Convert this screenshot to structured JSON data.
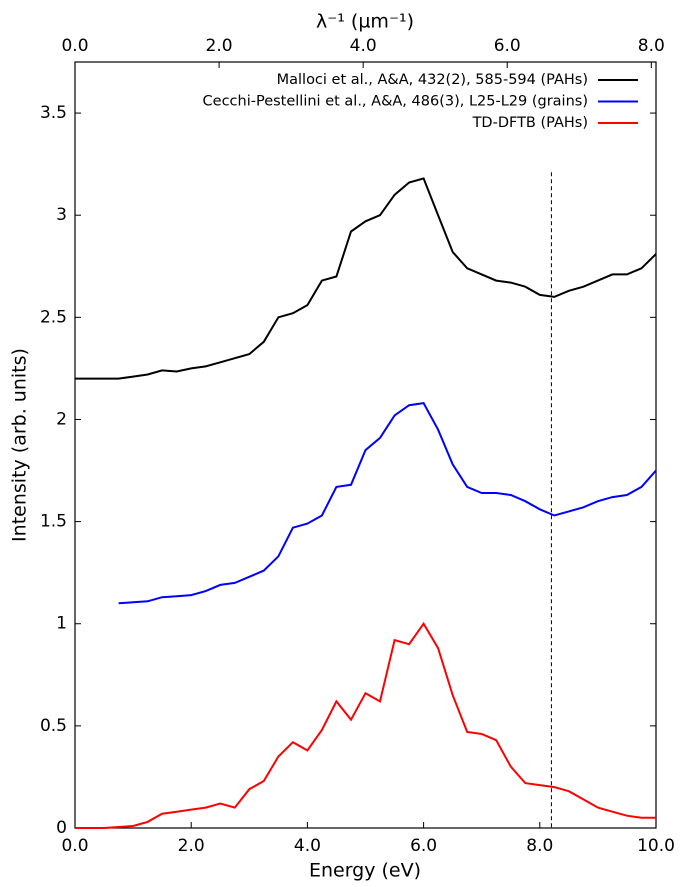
{
  "chart_data": {
    "type": "line",
    "xlabel": "Energy (eV)",
    "ylabel": "Intensity (arb. units)",
    "x2label": "λ⁻¹ (µm⁻¹)",
    "x": [
      0,
      0.25,
      0.5,
      0.75,
      1.0,
      1.25,
      1.5,
      1.75,
      2.0,
      2.25,
      2.5,
      2.75,
      3.0,
      3.25,
      3.5,
      3.75,
      4.0,
      4.25,
      4.5,
      4.75,
      5.0,
      5.25,
      5.5,
      5.75,
      6.0,
      6.25,
      6.5,
      6.75,
      7.0,
      7.25,
      7.5,
      7.75,
      8.0,
      8.25,
      8.5,
      8.75,
      9.0,
      9.25,
      9.5,
      9.75,
      10.0
    ],
    "series": [
      {
        "name": "Malloci et al., A&A, 432(2), 585-594 (PAHs)",
        "color": "#000000",
        "values": [
          2.2,
          2.2,
          2.2,
          2.2,
          2.21,
          2.22,
          2.24,
          2.235,
          2.25,
          2.26,
          2.28,
          2.3,
          2.32,
          2.38,
          2.5,
          2.52,
          2.56,
          2.68,
          2.7,
          2.92,
          2.97,
          3.0,
          3.1,
          3.16,
          3.18,
          3.0,
          2.82,
          2.74,
          2.71,
          2.68,
          2.67,
          2.65,
          2.61,
          2.6,
          2.63,
          2.65,
          2.68,
          2.71,
          2.71,
          2.74,
          2.81
        ]
      },
      {
        "name": "Cecchi-Pestellini et al., A&A, 486(3), L25-L29 (grains)",
        "color": "#0000ff",
        "values": [
          null,
          null,
          null,
          1.1,
          1.105,
          1.11,
          1.13,
          1.135,
          1.14,
          1.16,
          1.19,
          1.2,
          1.23,
          1.26,
          1.33,
          1.47,
          1.49,
          1.53,
          1.67,
          1.68,
          1.85,
          1.91,
          2.02,
          2.07,
          2.08,
          1.95,
          1.78,
          1.67,
          1.64,
          1.64,
          1.63,
          1.6,
          1.56,
          1.53,
          1.55,
          1.57,
          1.6,
          1.62,
          1.63,
          1.67,
          1.75
        ]
      },
      {
        "name": "TD-DFTB (PAHs)",
        "color": "#ff0000",
        "values": [
          0,
          0,
          0,
          0.005,
          0.01,
          0.03,
          0.07,
          0.08,
          0.09,
          0.1,
          0.12,
          0.1,
          0.19,
          0.23,
          0.35,
          0.42,
          0.38,
          0.48,
          0.62,
          0.53,
          0.66,
          0.62,
          0.92,
          0.9,
          1.0,
          0.88,
          0.65,
          0.47,
          0.46,
          0.43,
          0.3,
          0.22,
          0.21,
          0.2,
          0.18,
          0.14,
          0.1,
          0.08,
          0.06,
          0.05,
          0.05
        ]
      }
    ],
    "xlim": [
      0,
      10
    ],
    "xticks": [
      {
        "value": 0,
        "label": "0.0"
      },
      {
        "value": 2,
        "label": "2.0"
      },
      {
        "value": 4,
        "label": "4.0"
      },
      {
        "value": 6,
        "label": "6.0"
      },
      {
        "value": 8,
        "label": "8.0"
      },
      {
        "value": 10,
        "label": "10.0"
      }
    ],
    "x2lim": [
      0,
      8.065
    ],
    "x2ticks": [
      {
        "value": 0,
        "label": "0.0"
      },
      {
        "value": 2,
        "label": "2.0"
      },
      {
        "value": 4,
        "label": "4.0"
      },
      {
        "value": 6,
        "label": "6.0"
      },
      {
        "value": 8,
        "label": "8.0"
      }
    ],
    "ylim": [
      0,
      3.75
    ],
    "yticks": [
      0,
      0.5,
      1,
      1.5,
      2,
      2.5,
      3,
      3.5
    ],
    "vline": {
      "x": 8.2,
      "ymax": 3.21
    },
    "legend": "upper right",
    "grid": false
  }
}
